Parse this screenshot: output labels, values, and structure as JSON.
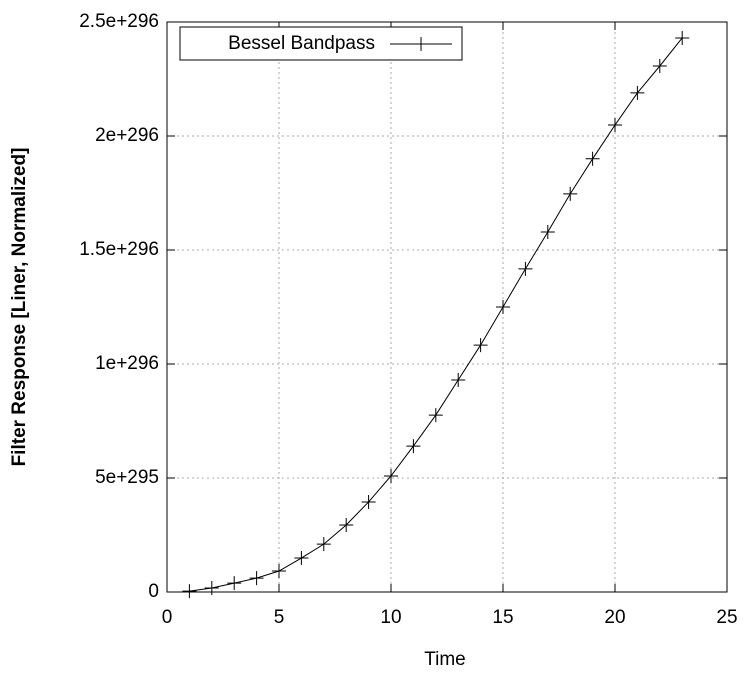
{
  "chart_data": {
    "type": "line",
    "xlabel": "Time",
    "ylabel": "Filter Response [Liner, Normalized]",
    "x": [
      1,
      2,
      3,
      4,
      5,
      6,
      7,
      8,
      9,
      10,
      11,
      12,
      13,
      14,
      15,
      16,
      17,
      18,
      19,
      20,
      21,
      22,
      23
    ],
    "series": [
      {
        "name": "Bessel Bandpass",
        "color": "#000000",
        "marker": "+",
        "values": [
          4e+293,
          1.75e+294,
          3.9e+294,
          6.1e+294,
          9.2e+294,
          1.49e+295,
          2.1e+295,
          2.94e+295,
          3.95e+295,
          5.09e+295,
          6.4e+295,
          7.76e+295,
          9.3e+295,
          1.083e+296,
          1.25e+296,
          1.417e+296,
          1.579e+296,
          1.746e+296,
          1.9e+296,
          2.048e+296,
          2.189e+296,
          2.307e+296,
          2.43e+296
        ]
      }
    ],
    "xlim": [
      0,
      25
    ],
    "xticks": [
      0,
      5,
      10,
      15,
      20,
      25
    ],
    "ylim": [
      0,
      2.5e+296
    ],
    "yticks": [
      0,
      5e+295,
      1e+296,
      1.5e+296,
      2e+296,
      2.5e+296
    ],
    "grid": true,
    "legend": "top-left"
  }
}
